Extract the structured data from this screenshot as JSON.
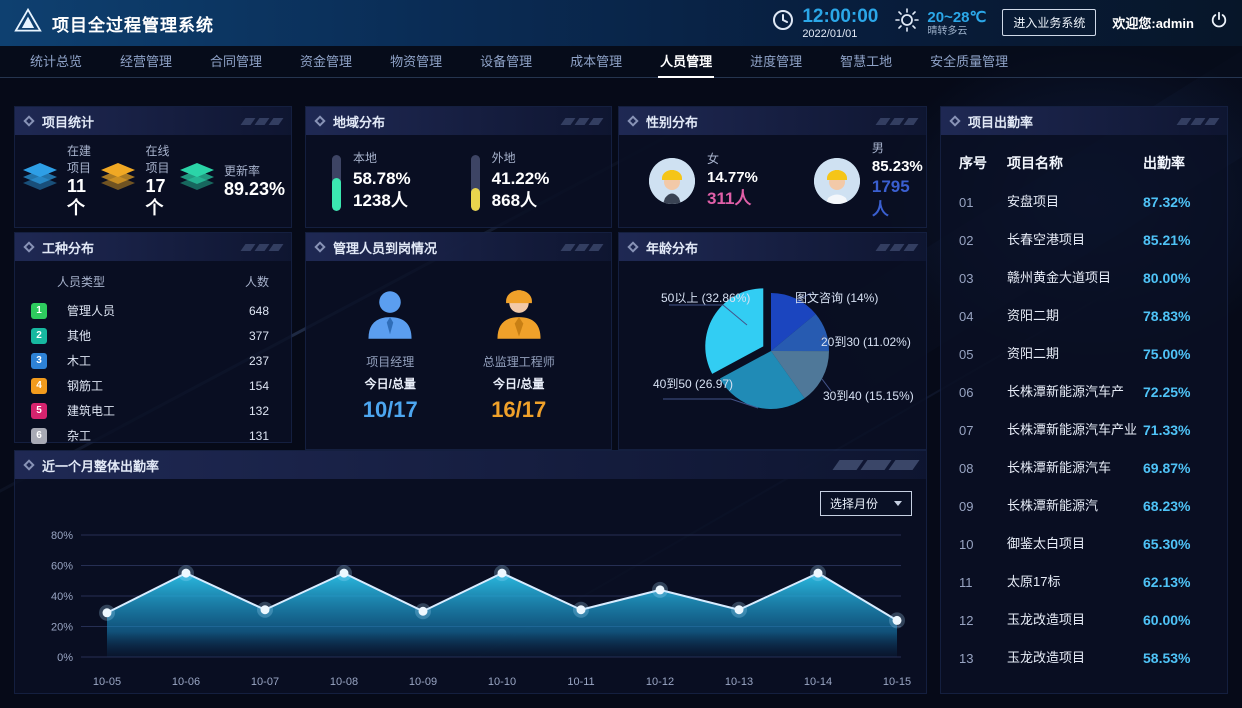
{
  "header": {
    "title": "项目全过程管理系统",
    "time": "12:00:00",
    "date": "2022/01/01",
    "temperature": "20~28℃",
    "weather": "晴转多云",
    "enter_button": "进入业务系统",
    "welcome": "欢迎您:admin"
  },
  "nav": {
    "tabs": [
      {
        "label": "统计总览",
        "active": false
      },
      {
        "label": "经营管理",
        "active": false
      },
      {
        "label": "合同管理",
        "active": false
      },
      {
        "label": "资金管理",
        "active": false
      },
      {
        "label": "物资管理",
        "active": false
      },
      {
        "label": "设备管理",
        "active": false
      },
      {
        "label": "成本管理",
        "active": false
      },
      {
        "label": "人员管理",
        "active": true
      },
      {
        "label": "进度管理",
        "active": false
      },
      {
        "label": "智慧工地",
        "active": false
      },
      {
        "label": "安全质量管理",
        "active": false
      }
    ]
  },
  "project_stats": {
    "title": "项目统计",
    "items": [
      {
        "label": "在建项目",
        "value": "11个",
        "color": "#2e9fe6"
      },
      {
        "label": "在线项目",
        "value": "17个",
        "color": "#f0a824"
      },
      {
        "label": "更新率",
        "value": "89.23%",
        "color": "#2bd4a8"
      }
    ]
  },
  "region": {
    "title": "地域分布",
    "items": [
      {
        "label": "本地",
        "percent": "58.78%",
        "count": "1238人",
        "fill_pct": 58.78,
        "color": "#3be8b0"
      },
      {
        "label": "外地",
        "percent": "41.22%",
        "count": "868人",
        "fill_pct": 41.22,
        "color": "#e8d44d"
      }
    ]
  },
  "gender": {
    "title": "性别分布",
    "items": [
      {
        "label": "女",
        "percent": "14.77%",
        "count": "311人",
        "count_color": "#e05fa8"
      },
      {
        "label": "男",
        "percent": "85.23%",
        "count": "1795人",
        "count_color": "#3a5fd0"
      }
    ]
  },
  "attendance": {
    "title": "项目出勤率",
    "columns": [
      "序号",
      "项目名称",
      "出勤率"
    ],
    "rate_color": "#4fc3f7",
    "rows": [
      {
        "no": "01",
        "name": "安盘项目",
        "rate": "87.32%"
      },
      {
        "no": "02",
        "name": "长春空港项目",
        "rate": "85.21%"
      },
      {
        "no": "03",
        "name": "赣州黄金大道项目",
        "rate": "80.00%"
      },
      {
        "no": "04",
        "name": "资阳二期",
        "rate": "78.83%"
      },
      {
        "no": "05",
        "name": "资阳二期",
        "rate": "75.00%"
      },
      {
        "no": "06",
        "name": "长株潭新能源汽车产",
        "rate": "72.25%"
      },
      {
        "no": "07",
        "name": "长株潭新能源汽车产业",
        "rate": "71.33%"
      },
      {
        "no": "08",
        "name": "长株潭新能源汽车",
        "rate": "69.87%"
      },
      {
        "no": "09",
        "name": "长株潭新能源汽",
        "rate": "68.23%"
      },
      {
        "no": "10",
        "name": "御鉴太白项目",
        "rate": "65.30%"
      },
      {
        "no": "11",
        "name": "太原17标",
        "rate": "62.13%"
      },
      {
        "no": "12",
        "name": "玉龙改造项目",
        "rate": "60.00%"
      },
      {
        "no": "13",
        "name": "玉龙改造项目",
        "rate": "58.53%"
      }
    ]
  },
  "worktype": {
    "title": "工种分布",
    "columns": [
      "人员类型",
      "人数"
    ],
    "rows": [
      {
        "rank": "1",
        "color": "#2ecc5e",
        "label": "管理人员",
        "count": "648"
      },
      {
        "rank": "2",
        "color": "#17b8a0",
        "label": "其他",
        "count": "377"
      },
      {
        "rank": "3",
        "color": "#2e82d6",
        "label": "木工",
        "count": "237"
      },
      {
        "rank": "4",
        "color": "#f29b1d",
        "label": "钢筋工",
        "count": "154"
      },
      {
        "rank": "5",
        "color": "#d6246e",
        "label": "建筑电工",
        "count": "132"
      },
      {
        "rank": "6",
        "color": "#a8aab5",
        "label": "杂工",
        "count": "131"
      }
    ]
  },
  "managers": {
    "title": "管理人员到岗情况",
    "items": [
      {
        "role": "项目经理",
        "caption": "今日/总量",
        "value": "10/17",
        "color": "#4da6f0"
      },
      {
        "role": "总监理工程师",
        "caption": "今日/总量",
        "value": "16/17",
        "color": "#f0a12a"
      }
    ]
  },
  "age": {
    "title": "年龄分布"
  },
  "month_panel": {
    "title": "近一个月整体出勤率",
    "dropdown_label": "选择月份"
  },
  "chart_data": [
    {
      "type": "pie",
      "title": "年龄分布",
      "start_angle_deg": 0,
      "clockwise": true,
      "legend_position": "callout-labels",
      "slices": [
        {
          "label": "图文咨询 (14%)",
          "value": 14,
          "color": "#1c49c8",
          "opacity": 0.95,
          "explode": false
        },
        {
          "label": "20到30 (11.02%)",
          "value": 11.02,
          "color": "#2f6fd6",
          "opacity": 0.8,
          "explode": false
        },
        {
          "label": "30到40 (15.15%)",
          "value": 15.15,
          "color": "#7fc0ea",
          "opacity": 0.6,
          "explode": false
        },
        {
          "label": "40到50 (26.97)",
          "value": 26.97,
          "color": "#28b6e8",
          "opacity": 0.75,
          "explode": false
        },
        {
          "label": "50以上 (32.86%)",
          "value": 32.86,
          "color": "#35d8ff",
          "opacity": 0.95,
          "explode": true
        }
      ]
    },
    {
      "type": "area",
      "title": "近一个月整体出勤率",
      "x": [
        "10-05",
        "10-06",
        "10-07",
        "10-08",
        "10-09",
        "10-10",
        "10-11",
        "10-12",
        "10-13",
        "10-14",
        "10-15"
      ],
      "values": [
        29,
        55,
        31,
        55,
        30,
        55,
        31,
        44,
        31,
        55,
        24
      ],
      "ylim": [
        0,
        80
      ],
      "yticks": [
        "0%",
        "20%",
        "40%",
        "60%",
        "80%"
      ],
      "grid": true,
      "line_color": "#d8ecff",
      "fill_top": "#2cc3ea",
      "fill_bottom": "#0b3a66"
    }
  ]
}
